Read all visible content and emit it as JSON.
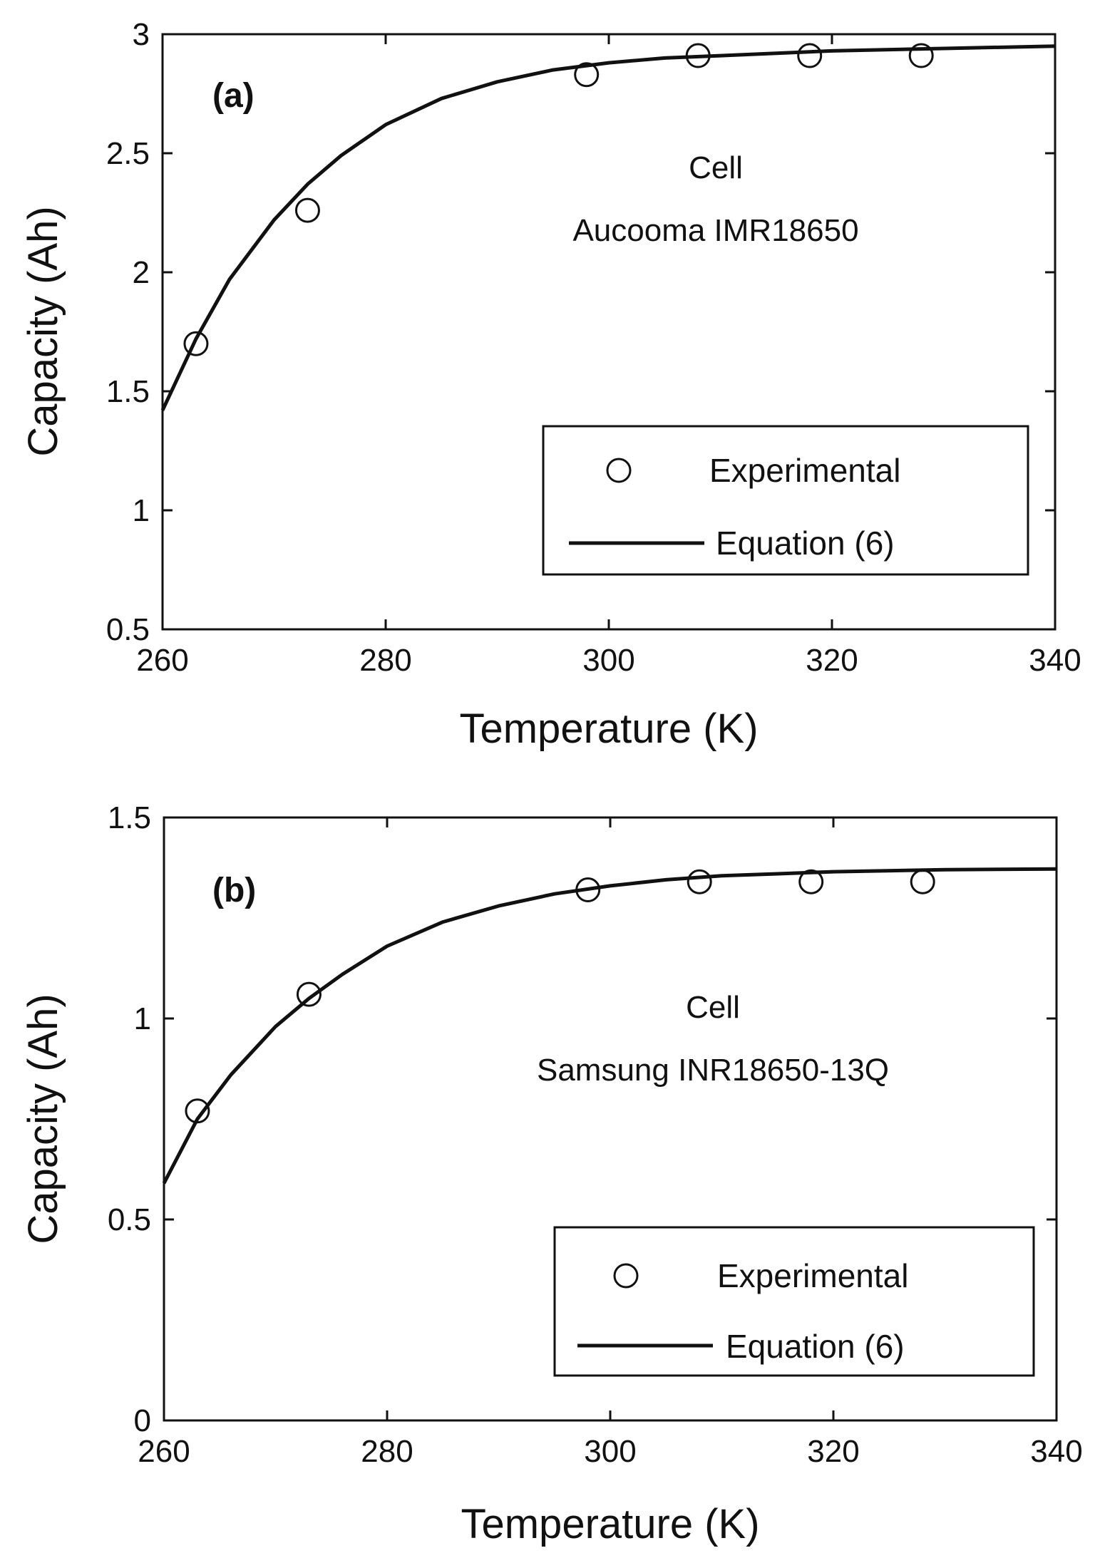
{
  "chart_data": [
    {
      "id": "a",
      "type": "scatter",
      "panel_label": "(a)",
      "xlabel": "Temperature (K)",
      "ylabel": "Capacity (Ah)",
      "xlim": [
        260,
        340
      ],
      "ylim": [
        0.5,
        3
      ],
      "xticks": [
        260,
        280,
        300,
        320,
        340
      ],
      "yticks": [
        0.5,
        1,
        1.5,
        2,
        2.5,
        3
      ],
      "xtick_labels": [
        "260",
        "280",
        "300",
        "320",
        "340"
      ],
      "ytick_labels": [
        "0.5",
        "1",
        "1.5",
        "2",
        "2.5",
        "3"
      ],
      "annotation": [
        "Cell",
        "Aucooma IMR18650"
      ],
      "legend": {
        "position": "lower-right",
        "entries": [
          "Experimental",
          "Equation (6)"
        ]
      },
      "series": [
        {
          "name": "Experimental",
          "marker": "open-circle",
          "x": [
            263,
            273,
            298,
            308,
            318,
            328
          ],
          "y": [
            1.7,
            2.26,
            2.83,
            2.91,
            2.91,
            2.91
          ]
        },
        {
          "name": "Equation (6)",
          "style": "solid-line",
          "x": [
            260,
            263,
            266,
            270,
            273,
            276,
            280,
            285,
            290,
            295,
            300,
            305,
            310,
            315,
            320,
            330,
            340
          ],
          "y": [
            1.42,
            1.72,
            1.97,
            2.22,
            2.37,
            2.49,
            2.62,
            2.73,
            2.8,
            2.85,
            2.88,
            2.9,
            2.91,
            2.92,
            2.93,
            2.94,
            2.95
          ]
        }
      ]
    },
    {
      "id": "b",
      "type": "scatter",
      "panel_label": "(b)",
      "xlabel": "Temperature (K)",
      "ylabel": "Capacity (Ah)",
      "xlim": [
        260,
        340
      ],
      "ylim": [
        0,
        1.5
      ],
      "xticks": [
        260,
        280,
        300,
        320,
        340
      ],
      "yticks": [
        0,
        0.5,
        1,
        1.5
      ],
      "xtick_labels": [
        "260",
        "280",
        "300",
        "320",
        "340"
      ],
      "ytick_labels": [
        "0",
        "0.5",
        "1",
        "1.5"
      ],
      "annotation": [
        "Cell",
        "Samsung INR18650-13Q"
      ],
      "legend": {
        "position": "lower-right",
        "entries": [
          "Experimental",
          "Equation (6)"
        ]
      },
      "series": [
        {
          "name": "Experimental",
          "marker": "open-circle",
          "x": [
            263,
            273,
            298,
            308,
            318,
            328
          ],
          "y": [
            0.77,
            1.06,
            1.32,
            1.34,
            1.34,
            1.34
          ]
        },
        {
          "name": "Equation (6)",
          "style": "solid-line",
          "x": [
            260,
            263,
            266,
            270,
            273,
            276,
            280,
            285,
            290,
            295,
            300,
            305,
            310,
            315,
            320,
            330,
            340
          ],
          "y": [
            0.59,
            0.75,
            0.86,
            0.98,
            1.05,
            1.11,
            1.18,
            1.24,
            1.28,
            1.31,
            1.33,
            1.345,
            1.355,
            1.36,
            1.365,
            1.37,
            1.372
          ]
        }
      ]
    }
  ]
}
